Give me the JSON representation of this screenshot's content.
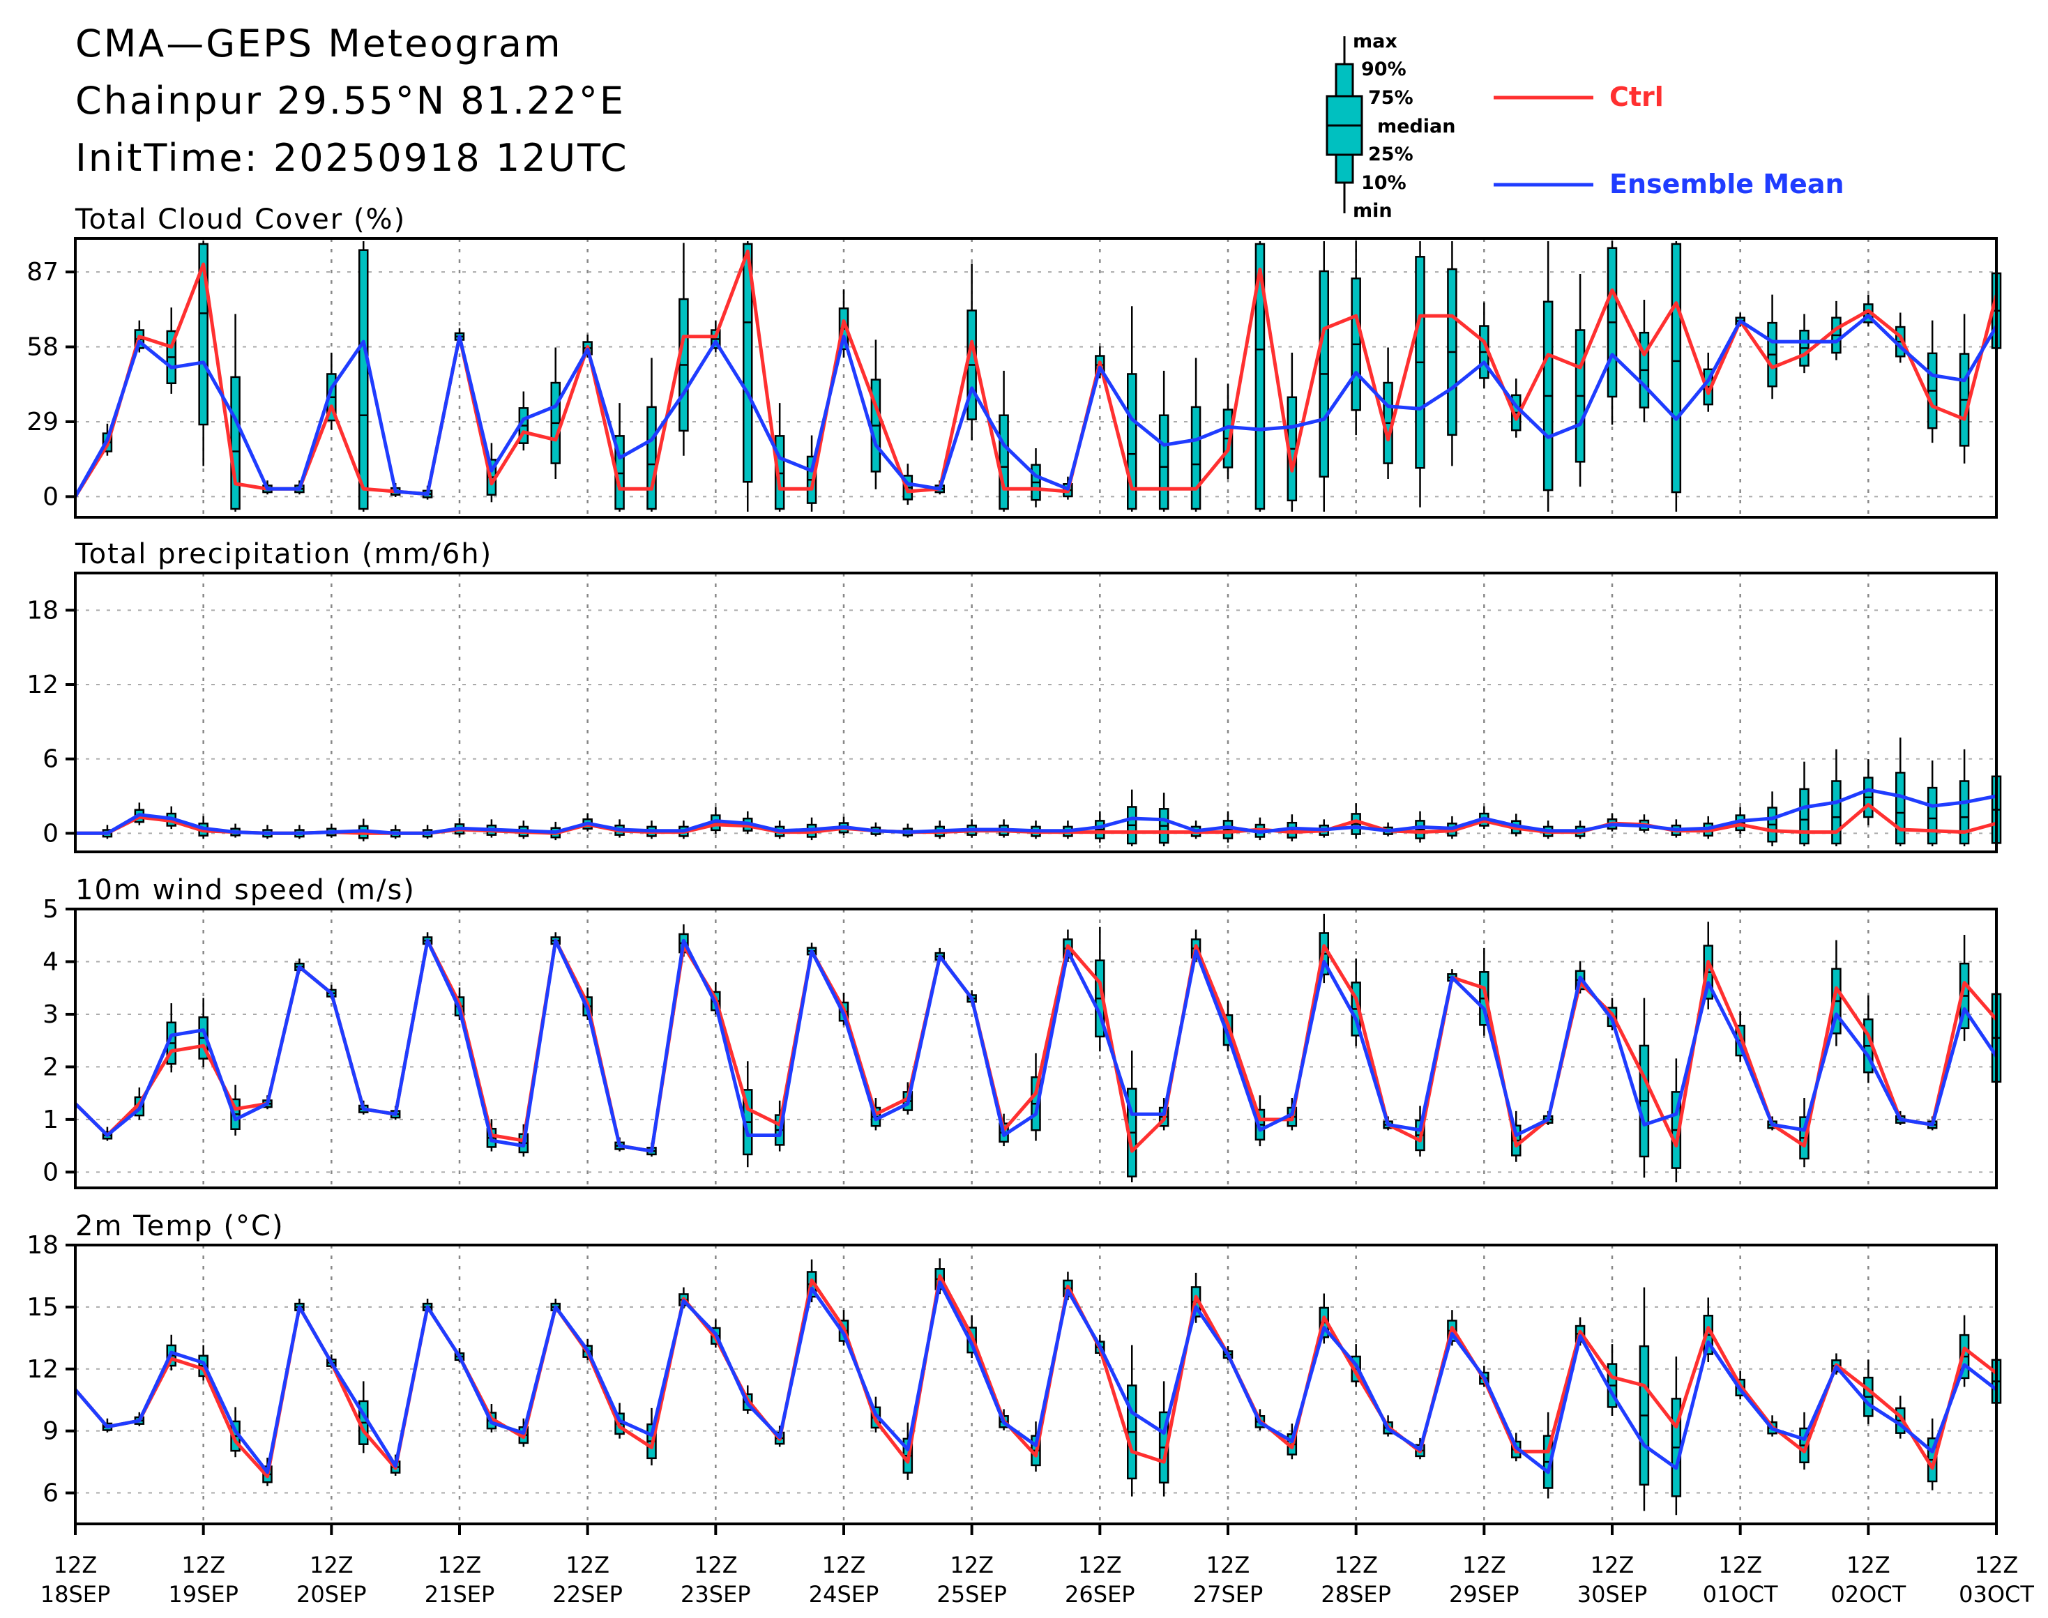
{
  "header": {
    "title": "CMA—GEPS Meteogram",
    "location": "Chainpur 29.55°N 81.22°E",
    "init_time": "InitTime: 20250918 12UTC"
  },
  "legend": {
    "box_labels": [
      "max",
      "90%",
      "75%",
      "median",
      "25%",
      "10%",
      "min"
    ],
    "ctrl_label": "Ctrl",
    "mean_label": "Ensemble Mean",
    "colors": {
      "ctrl": "#ff3030",
      "mean": "#1f3cff",
      "box_fill": "#00c0c0"
    }
  },
  "x_axis": {
    "tick_labels": [
      [
        "12Z",
        "18SEP"
      ],
      [
        "12Z",
        "19SEP"
      ],
      [
        "12Z",
        "20SEP"
      ],
      [
        "12Z",
        "21SEP"
      ],
      [
        "12Z",
        "22SEP"
      ],
      [
        "12Z",
        "23SEP"
      ],
      [
        "12Z",
        "24SEP"
      ],
      [
        "12Z",
        "25SEP"
      ],
      [
        "12Z",
        "26SEP"
      ],
      [
        "12Z",
        "27SEP"
      ],
      [
        "12Z",
        "28SEP"
      ],
      [
        "12Z",
        "29SEP"
      ],
      [
        "12Z",
        "30SEP"
      ],
      [
        "12Z",
        "01OCT"
      ],
      [
        "12Z",
        "02OCT"
      ],
      [
        "12Z",
        "03OCT"
      ]
    ],
    "step_hours": 6,
    "n_steps": 61
  },
  "chart_data": [
    {
      "type": "line",
      "title": "Total Cloud Cover (%)",
      "ylim": [
        -8,
        100
      ],
      "yticks": [
        0,
        29,
        58,
        87
      ],
      "grid": "vertical dotted at 12Z",
      "ctrl": [
        0,
        20,
        62,
        58,
        90,
        5,
        3,
        3,
        35,
        3,
        2,
        1,
        62,
        5,
        25,
        22,
        58,
        3,
        3,
        62,
        62,
        95,
        3,
        3,
        68,
        35,
        2,
        3,
        60,
        3,
        3,
        2,
        52,
        3,
        3,
        3,
        18,
        88,
        10,
        65,
        70,
        22,
        70,
        70,
        60,
        30,
        55,
        50,
        80,
        55,
        75,
        40,
        68,
        50,
        55,
        65,
        72,
        62,
        35,
        30,
        78
      ],
      "mean": [
        0,
        22,
        60,
        50,
        52,
        30,
        3,
        3,
        42,
        60,
        2,
        1,
        62,
        10,
        30,
        35,
        57,
        15,
        22,
        40,
        60,
        40,
        15,
        10,
        62,
        20,
        5,
        3,
        42,
        20,
        8,
        3,
        50,
        30,
        20,
        22,
        27,
        26,
        27,
        30,
        48,
        35,
        34,
        42,
        52,
        35,
        23,
        28,
        55,
        43,
        30,
        45,
        68,
        60,
        60,
        60,
        70,
        58,
        47,
        45,
        66
      ]
    },
    {
      "type": "line",
      "title": "Total precipitation (mm/6h)",
      "ylim": [
        -1.5,
        21
      ],
      "yticks": [
        0,
        6,
        12,
        18
      ],
      "grid": "vertical dotted at 12Z",
      "ctrl": [
        0,
        0,
        1.3,
        1.0,
        0.2,
        0.1,
        0,
        0,
        0.1,
        0,
        0,
        0,
        0.3,
        0.2,
        0.1,
        0,
        0.7,
        0.2,
        0.1,
        0.1,
        0.7,
        0.6,
        0.1,
        0.1,
        0.4,
        0.2,
        0.1,
        0.1,
        0.2,
        0.2,
        0.1,
        0.1,
        0.1,
        0.1,
        0.1,
        0.1,
        0.1,
        0.3,
        0.1,
        0.2,
        1.0,
        0.2,
        0.1,
        0.2,
        1.0,
        0.4,
        0.1,
        0.1,
        0.8,
        0.7,
        0.2,
        0.2,
        0.7,
        0.2,
        0.1,
        0.1,
        2.3,
        0.3,
        0.2,
        0.1,
        0.8
      ],
      "mean": [
        0,
        0,
        1.5,
        1.2,
        0.4,
        0.1,
        0,
        0,
        0.1,
        0.2,
        0,
        0,
        0.4,
        0.3,
        0.2,
        0.1,
        0.8,
        0.3,
        0.2,
        0.2,
        1.0,
        0.8,
        0.2,
        0.3,
        0.5,
        0.2,
        0.1,
        0.2,
        0.3,
        0.3,
        0.2,
        0.2,
        0.5,
        1.2,
        1.1,
        0.2,
        0.5,
        0.1,
        0.4,
        0.3,
        0.5,
        0.2,
        0.5,
        0.4,
        1.2,
        0.6,
        0.2,
        0.2,
        0.7,
        0.6,
        0.3,
        0.4,
        1.0,
        1.2,
        2.1,
        2.5,
        3.5,
        3.0,
        2.2,
        2.5,
        3.0
      ]
    },
    {
      "type": "line",
      "title": "10m wind speed (m/s)",
      "ylim": [
        -0.3,
        5
      ],
      "yticks": [
        0,
        1,
        2,
        3,
        4,
        5
      ],
      "grid": "vertical dotted at 12Z",
      "ctrl": [
        1.3,
        0.7,
        1.3,
        2.3,
        2.4,
        1.2,
        1.3,
        3.9,
        3.4,
        1.2,
        1.1,
        4.4,
        3.2,
        0.7,
        0.6,
        4.4,
        3.2,
        0.5,
        0.4,
        4.3,
        3.3,
        1.2,
        0.9,
        4.2,
        3.1,
        1.1,
        1.4,
        4.1,
        3.3,
        0.8,
        1.5,
        4.3,
        3.6,
        0.4,
        1.0,
        4.3,
        2.8,
        1.0,
        1.0,
        4.3,
        3.3,
        0.9,
        0.6,
        3.7,
        3.5,
        0.5,
        1.0,
        3.6,
        3.0,
        1.8,
        0.5,
        4.0,
        2.6,
        0.9,
        0.5,
        3.5,
        2.6,
        1.0,
        0.9,
        3.6,
        2.9
      ],
      "mean": [
        1.3,
        0.7,
        1.2,
        2.6,
        2.7,
        1.0,
        1.3,
        3.9,
        3.4,
        1.2,
        1.1,
        4.4,
        3.1,
        0.6,
        0.5,
        4.4,
        3.1,
        0.5,
        0.4,
        4.4,
        3.2,
        0.7,
        0.7,
        4.2,
        3.0,
        1.0,
        1.3,
        4.1,
        3.3,
        0.7,
        1.1,
        4.2,
        3.0,
        1.1,
        1.1,
        4.2,
        2.6,
        0.8,
        1.1,
        4.0,
        2.9,
        0.9,
        0.8,
        3.7,
        3.1,
        0.7,
        1.0,
        3.7,
        2.9,
        0.9,
        1.1,
        3.6,
        2.4,
        0.9,
        0.8,
        3.0,
        2.2,
        1.0,
        0.9,
        3.1,
        2.2
      ]
    },
    {
      "type": "line",
      "title": "2m Temp (°C)",
      "ylim": [
        4.5,
        18
      ],
      "yticks": [
        6,
        9,
        12,
        15,
        18
      ],
      "grid": "vertical dotted at 12Z",
      "ctrl": [
        11,
        9.2,
        9.5,
        12.5,
        12,
        8.5,
        6.8,
        15,
        12.3,
        9,
        7.2,
        15,
        12.6,
        9.6,
        8.7,
        15,
        12.8,
        9.2,
        8.2,
        15.4,
        13.5,
        10.5,
        8.6,
        16.3,
        14.0,
        9.5,
        7.5,
        16.5,
        13.6,
        9.5,
        7.8,
        16.0,
        13.0,
        8.0,
        7.5,
        15.5,
        12.7,
        9.5,
        8.2,
        14.5,
        11.8,
        9.2,
        8.0,
        14.0,
        11.5,
        8.0,
        8.0,
        13.8,
        11.6,
        11.2,
        9.2,
        14.0,
        11.2,
        9.2,
        8.0,
        12.2,
        11.0,
        9.7,
        7.2,
        13.0,
        11.8
      ],
      "mean": [
        11,
        9.2,
        9.5,
        12.8,
        12.3,
        9,
        7.0,
        15,
        12.3,
        9.8,
        7.3,
        15,
        12.6,
        9.4,
        8.9,
        15,
        12.9,
        9.5,
        8.8,
        15.3,
        13.7,
        10.3,
        8.7,
        15.9,
        13.7,
        9.8,
        8.1,
        16.2,
        13.2,
        9.4,
        8.3,
        15.8,
        13.1,
        9.9,
        8.9,
        15.0,
        12.7,
        9.4,
        8.5,
        14.0,
        12.2,
        9.1,
        8.1,
        13.7,
        11.6,
        8.2,
        7.0,
        13.6,
        10.8,
        8.3,
        7.2,
        13.3,
        11.0,
        9.1,
        8.6,
        12.1,
        10.3,
        9.3,
        8.0,
        12.2,
        11.0
      ]
    }
  ]
}
